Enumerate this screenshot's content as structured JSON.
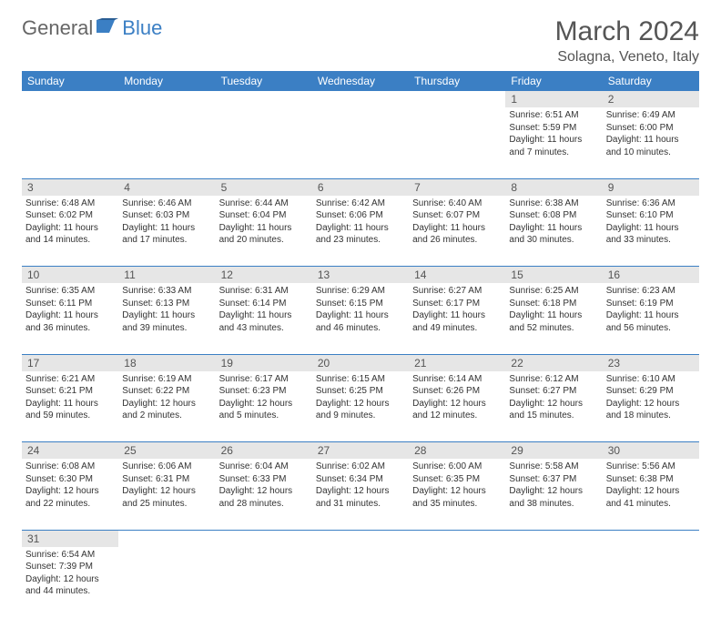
{
  "logo": {
    "general": "General",
    "blue": "Blue"
  },
  "title": "March 2024",
  "location": "Solagna, Veneto, Italy",
  "colors": {
    "header_bg": "#3b7fc4",
    "daynum_bg": "#e6e6e6",
    "page_bg": "#ffffff",
    "text": "#333333"
  },
  "font": {
    "cell_size": 10,
    "header_size": 12,
    "title_size": 30,
    "location_size": 16
  },
  "weekdays": [
    "Sunday",
    "Monday",
    "Tuesday",
    "Wednesday",
    "Thursday",
    "Friday",
    "Saturday"
  ],
  "weeks": [
    {
      "days": [
        null,
        null,
        null,
        null,
        null,
        {
          "n": "1",
          "sunrise": "Sunrise: 6:51 AM",
          "sunset": "Sunset: 5:59 PM",
          "day1": "Daylight: 11 hours",
          "day2": "and 7 minutes."
        },
        {
          "n": "2",
          "sunrise": "Sunrise: 6:49 AM",
          "sunset": "Sunset: 6:00 PM",
          "day1": "Daylight: 11 hours",
          "day2": "and 10 minutes."
        }
      ]
    },
    {
      "days": [
        {
          "n": "3",
          "sunrise": "Sunrise: 6:48 AM",
          "sunset": "Sunset: 6:02 PM",
          "day1": "Daylight: 11 hours",
          "day2": "and 14 minutes."
        },
        {
          "n": "4",
          "sunrise": "Sunrise: 6:46 AM",
          "sunset": "Sunset: 6:03 PM",
          "day1": "Daylight: 11 hours",
          "day2": "and 17 minutes."
        },
        {
          "n": "5",
          "sunrise": "Sunrise: 6:44 AM",
          "sunset": "Sunset: 6:04 PM",
          "day1": "Daylight: 11 hours",
          "day2": "and 20 minutes."
        },
        {
          "n": "6",
          "sunrise": "Sunrise: 6:42 AM",
          "sunset": "Sunset: 6:06 PM",
          "day1": "Daylight: 11 hours",
          "day2": "and 23 minutes."
        },
        {
          "n": "7",
          "sunrise": "Sunrise: 6:40 AM",
          "sunset": "Sunset: 6:07 PM",
          "day1": "Daylight: 11 hours",
          "day2": "and 26 minutes."
        },
        {
          "n": "8",
          "sunrise": "Sunrise: 6:38 AM",
          "sunset": "Sunset: 6:08 PM",
          "day1": "Daylight: 11 hours",
          "day2": "and 30 minutes."
        },
        {
          "n": "9",
          "sunrise": "Sunrise: 6:36 AM",
          "sunset": "Sunset: 6:10 PM",
          "day1": "Daylight: 11 hours",
          "day2": "and 33 minutes."
        }
      ]
    },
    {
      "days": [
        {
          "n": "10",
          "sunrise": "Sunrise: 6:35 AM",
          "sunset": "Sunset: 6:11 PM",
          "day1": "Daylight: 11 hours",
          "day2": "and 36 minutes."
        },
        {
          "n": "11",
          "sunrise": "Sunrise: 6:33 AM",
          "sunset": "Sunset: 6:13 PM",
          "day1": "Daylight: 11 hours",
          "day2": "and 39 minutes."
        },
        {
          "n": "12",
          "sunrise": "Sunrise: 6:31 AM",
          "sunset": "Sunset: 6:14 PM",
          "day1": "Daylight: 11 hours",
          "day2": "and 43 minutes."
        },
        {
          "n": "13",
          "sunrise": "Sunrise: 6:29 AM",
          "sunset": "Sunset: 6:15 PM",
          "day1": "Daylight: 11 hours",
          "day2": "and 46 minutes."
        },
        {
          "n": "14",
          "sunrise": "Sunrise: 6:27 AM",
          "sunset": "Sunset: 6:17 PM",
          "day1": "Daylight: 11 hours",
          "day2": "and 49 minutes."
        },
        {
          "n": "15",
          "sunrise": "Sunrise: 6:25 AM",
          "sunset": "Sunset: 6:18 PM",
          "day1": "Daylight: 11 hours",
          "day2": "and 52 minutes."
        },
        {
          "n": "16",
          "sunrise": "Sunrise: 6:23 AM",
          "sunset": "Sunset: 6:19 PM",
          "day1": "Daylight: 11 hours",
          "day2": "and 56 minutes."
        }
      ]
    },
    {
      "days": [
        {
          "n": "17",
          "sunrise": "Sunrise: 6:21 AM",
          "sunset": "Sunset: 6:21 PM",
          "day1": "Daylight: 11 hours",
          "day2": "and 59 minutes."
        },
        {
          "n": "18",
          "sunrise": "Sunrise: 6:19 AM",
          "sunset": "Sunset: 6:22 PM",
          "day1": "Daylight: 12 hours",
          "day2": "and 2 minutes."
        },
        {
          "n": "19",
          "sunrise": "Sunrise: 6:17 AM",
          "sunset": "Sunset: 6:23 PM",
          "day1": "Daylight: 12 hours",
          "day2": "and 5 minutes."
        },
        {
          "n": "20",
          "sunrise": "Sunrise: 6:15 AM",
          "sunset": "Sunset: 6:25 PM",
          "day1": "Daylight: 12 hours",
          "day2": "and 9 minutes."
        },
        {
          "n": "21",
          "sunrise": "Sunrise: 6:14 AM",
          "sunset": "Sunset: 6:26 PM",
          "day1": "Daylight: 12 hours",
          "day2": "and 12 minutes."
        },
        {
          "n": "22",
          "sunrise": "Sunrise: 6:12 AM",
          "sunset": "Sunset: 6:27 PM",
          "day1": "Daylight: 12 hours",
          "day2": "and 15 minutes."
        },
        {
          "n": "23",
          "sunrise": "Sunrise: 6:10 AM",
          "sunset": "Sunset: 6:29 PM",
          "day1": "Daylight: 12 hours",
          "day2": "and 18 minutes."
        }
      ]
    },
    {
      "days": [
        {
          "n": "24",
          "sunrise": "Sunrise: 6:08 AM",
          "sunset": "Sunset: 6:30 PM",
          "day1": "Daylight: 12 hours",
          "day2": "and 22 minutes."
        },
        {
          "n": "25",
          "sunrise": "Sunrise: 6:06 AM",
          "sunset": "Sunset: 6:31 PM",
          "day1": "Daylight: 12 hours",
          "day2": "and 25 minutes."
        },
        {
          "n": "26",
          "sunrise": "Sunrise: 6:04 AM",
          "sunset": "Sunset: 6:33 PM",
          "day1": "Daylight: 12 hours",
          "day2": "and 28 minutes."
        },
        {
          "n": "27",
          "sunrise": "Sunrise: 6:02 AM",
          "sunset": "Sunset: 6:34 PM",
          "day1": "Daylight: 12 hours",
          "day2": "and 31 minutes."
        },
        {
          "n": "28",
          "sunrise": "Sunrise: 6:00 AM",
          "sunset": "Sunset: 6:35 PM",
          "day1": "Daylight: 12 hours",
          "day2": "and 35 minutes."
        },
        {
          "n": "29",
          "sunrise": "Sunrise: 5:58 AM",
          "sunset": "Sunset: 6:37 PM",
          "day1": "Daylight: 12 hours",
          "day2": "and 38 minutes."
        },
        {
          "n": "30",
          "sunrise": "Sunrise: 5:56 AM",
          "sunset": "Sunset: 6:38 PM",
          "day1": "Daylight: 12 hours",
          "day2": "and 41 minutes."
        }
      ]
    },
    {
      "days": [
        {
          "n": "31",
          "sunrise": "Sunrise: 6:54 AM",
          "sunset": "Sunset: 7:39 PM",
          "day1": "Daylight: 12 hours",
          "day2": "and 44 minutes."
        },
        null,
        null,
        null,
        null,
        null,
        null
      ]
    }
  ]
}
